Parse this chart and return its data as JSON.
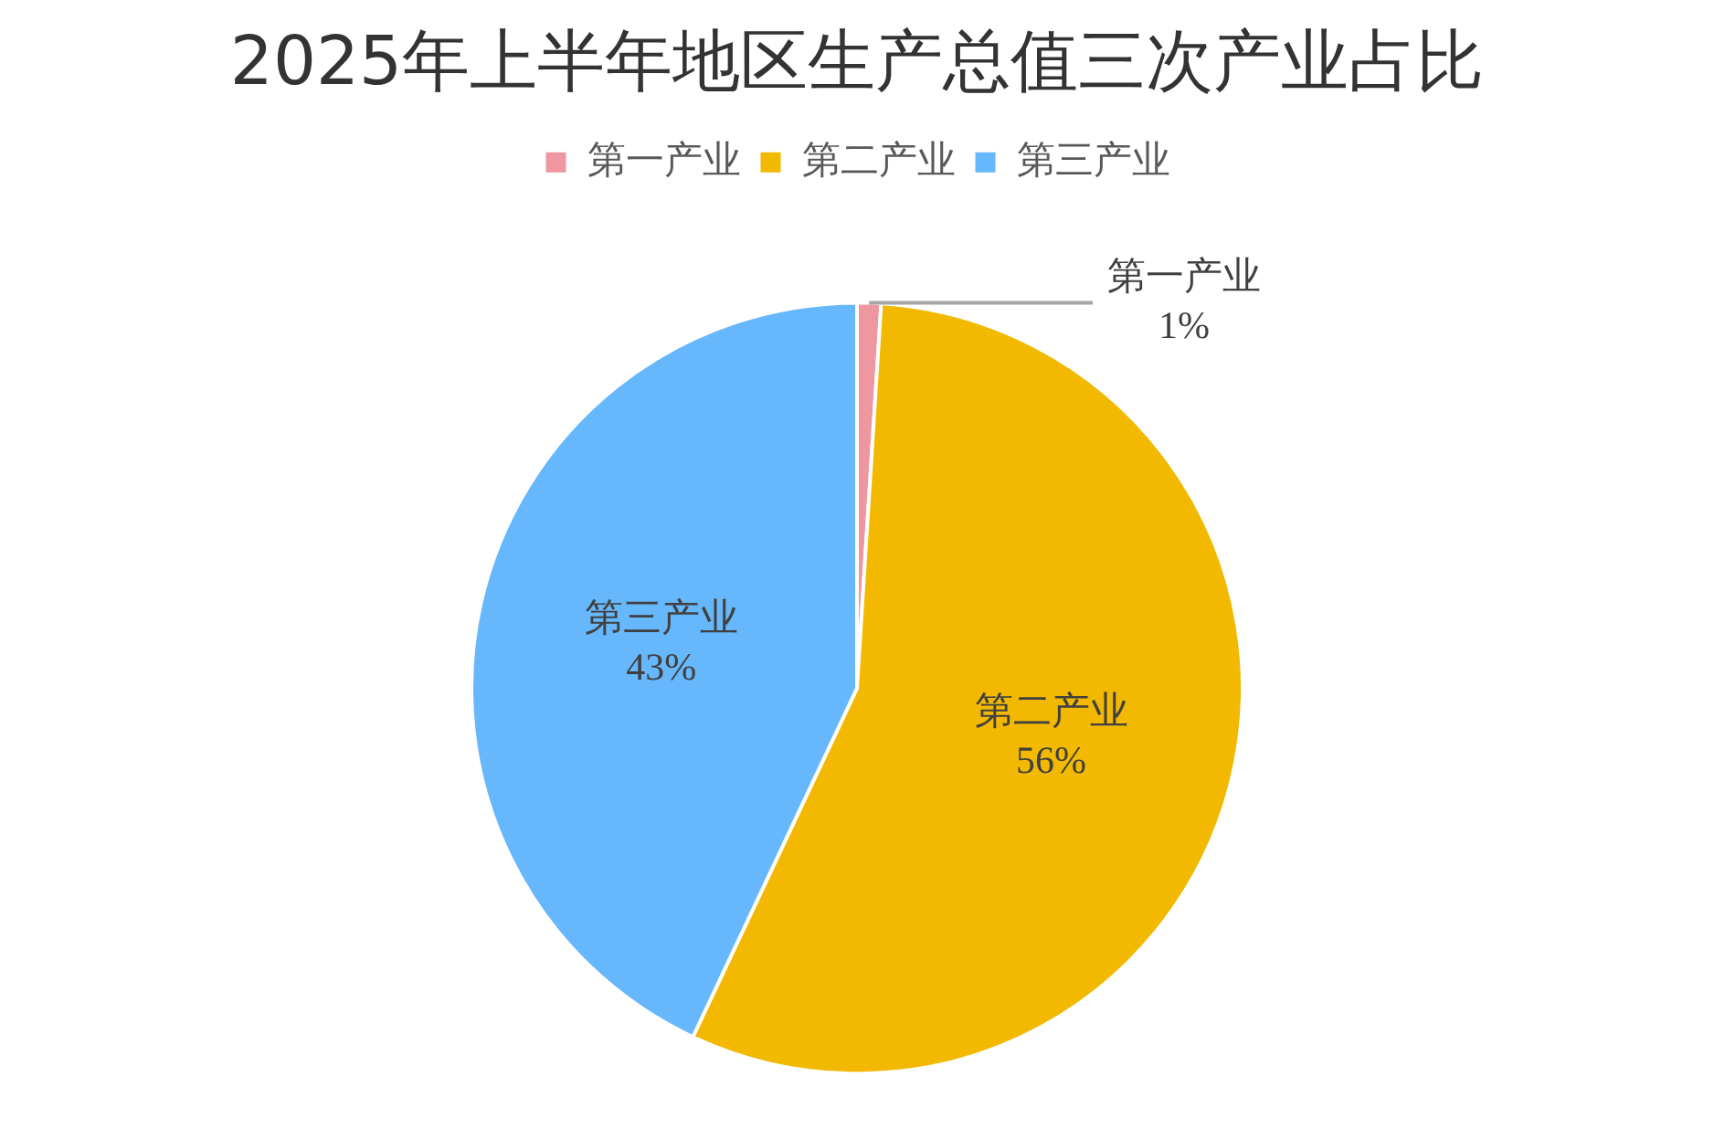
{
  "chart_data": {
    "type": "pie",
    "title": "2025年上半年地区生产总值三次产业占比",
    "categories": [
      "第一产业",
      "第二产业",
      "第三产业"
    ],
    "values": [
      1,
      56,
      43
    ],
    "colors": [
      "#ef97a0",
      "#f2b900",
      "#66b7fb"
    ],
    "value_labels": [
      "1%",
      "56%",
      "43%"
    ],
    "legend": "top"
  }
}
